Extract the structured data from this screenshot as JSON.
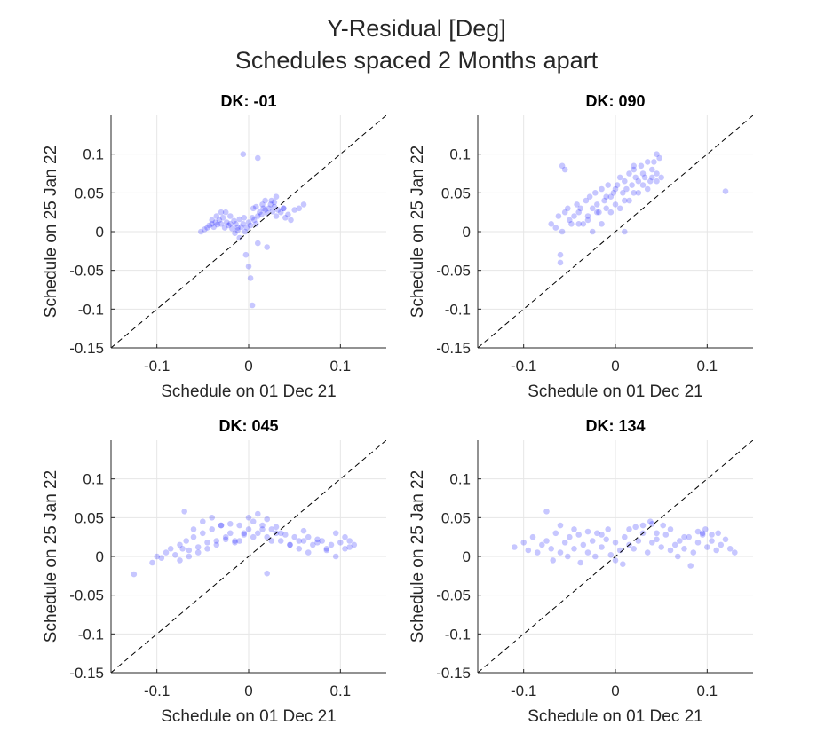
{
  "figure": {
    "title_line1": "Y-Residual [Deg]",
    "title_line2": "Schedules spaced 2 Months apart"
  },
  "style": {
    "point_color": "#0000ff",
    "point_opacity": 0.22,
    "axis_color": "#262626",
    "grid_color": "#e6e6e6"
  },
  "chart_data": [
    {
      "type": "scatter",
      "title": "DK: -01",
      "xlabel": "Schedule on 01 Dec 21",
      "ylabel": "Schedule on 25 Jan 22",
      "xlim": [
        -0.15,
        0.15
      ],
      "ylim": [
        -0.15,
        0.15
      ],
      "xticks": [
        -0.1,
        0,
        0.1
      ],
      "xtick_labels": [
        "-0.1",
        "0",
        "0.1"
      ],
      "yticks": [
        -0.15,
        -0.1,
        -0.05,
        0,
        0.05,
        0.1
      ],
      "ytick_labels": [
        "-0.15",
        "-0.1",
        "-0.05",
        "0",
        "0.05",
        "0.1"
      ],
      "grid": true,
      "reference_line": "y = x (dashed)",
      "series": [
        {
          "x": [
            -0.052,
            -0.048,
            -0.045,
            -0.043,
            -0.04,
            -0.038,
            -0.036,
            -0.034,
            -0.032,
            -0.03,
            -0.028,
            -0.026,
            -0.024,
            -0.022,
            -0.02,
            -0.018,
            -0.016,
            -0.014,
            -0.012,
            -0.01,
            -0.008,
            -0.006,
            -0.004,
            -0.002,
            0.0,
            0.002,
            0.004,
            0.006,
            0.008,
            0.01,
            0.012,
            0.014,
            0.016,
            0.018,
            0.02,
            0.022,
            0.024,
            0.026,
            0.028,
            0.03,
            0.032,
            0.035,
            0.038,
            0.04,
            0.043,
            0.046,
            0.05,
            0.055,
            0.06,
            -0.035,
            -0.025,
            -0.015,
            -0.005,
            0.005,
            0.015,
            0.025,
            0.01,
            -0.01,
            0.02,
            -0.02,
            0.0,
            0.002,
            -0.003,
            0.004,
            -0.006,
            0.01,
            0.03,
            -0.04,
            -0.03,
            -0.012,
            0.008,
            0.018,
            0.028,
            0.038
          ],
          "y": [
            0.0,
            0.003,
            0.005,
            0.008,
            0.01,
            0.006,
            0.012,
            0.009,
            0.015,
            0.01,
            0.018,
            0.005,
            0.012,
            0.008,
            0.02,
            0.004,
            0.014,
            0.01,
            0.002,
            0.016,
            0.006,
            0.01,
            0.0,
            0.005,
            0.012,
            0.008,
            0.018,
            0.015,
            0.01,
            0.02,
            0.025,
            0.022,
            0.03,
            0.028,
            0.024,
            0.03,
            0.035,
            0.026,
            0.032,
            0.02,
            0.028,
            0.025,
            0.03,
            0.018,
            0.022,
            0.015,
            0.028,
            0.03,
            0.035,
            0.02,
            0.025,
            -0.002,
            0.018,
            0.03,
            0.035,
            0.04,
            -0.015,
            -0.008,
            -0.02,
            0.01,
            -0.045,
            -0.06,
            -0.03,
            -0.095,
            0.1,
            0.095,
            0.045,
            0.015,
            0.025,
            0.005,
            0.032,
            0.04,
            0.038,
            0.03
          ]
        }
      ]
    },
    {
      "type": "scatter",
      "title": "DK: 090",
      "xlabel": "Schedule on 01 Dec 21",
      "ylabel": "Schedule on 25 Jan 22",
      "xlim": [
        -0.15,
        0.15
      ],
      "ylim": [
        -0.15,
        0.15
      ],
      "xticks": [
        -0.1,
        0,
        0.1
      ],
      "xtick_labels": [
        "-0.1",
        "0",
        "0.1"
      ],
      "yticks": [
        -0.15,
        -0.1,
        -0.05,
        0,
        0.05,
        0.1
      ],
      "ytick_labels": [
        "-0.15",
        "-0.1",
        "-0.05",
        "0",
        "0.05",
        "0.1"
      ],
      "grid": true,
      "reference_line": "y = x (dashed)",
      "series": [
        {
          "x": [
            -0.07,
            -0.065,
            -0.062,
            -0.06,
            -0.058,
            -0.055,
            -0.052,
            -0.05,
            -0.048,
            -0.045,
            -0.042,
            -0.04,
            -0.038,
            -0.035,
            -0.032,
            -0.03,
            -0.028,
            -0.025,
            -0.022,
            -0.02,
            -0.018,
            -0.015,
            -0.012,
            -0.01,
            -0.008,
            -0.005,
            -0.002,
            0.0,
            0.002,
            0.005,
            0.008,
            0.01,
            0.012,
            0.015,
            0.018,
            0.02,
            0.022,
            0.025,
            0.028,
            0.03,
            0.032,
            0.035,
            0.038,
            0.04,
            0.042,
            0.045,
            0.048,
            0.05,
            -0.03,
            -0.02,
            -0.01,
            0.0,
            0.01,
            0.02,
            0.03,
            0.04,
            -0.025,
            -0.015,
            -0.005,
            0.005,
            0.015,
            0.025,
            0.035,
            0.045,
            -0.06,
            -0.058,
            -0.055,
            0.01,
            0.12,
            0.045,
            -0.04,
            0.02
          ],
          "y": [
            0.01,
            0.005,
            0.02,
            -0.04,
            0.0,
            0.025,
            0.03,
            0.015,
            0.01,
            0.02,
            0.035,
            0.025,
            0.03,
            0.01,
            0.04,
            0.02,
            0.045,
            0.03,
            0.05,
            0.035,
            0.025,
            0.055,
            0.04,
            0.03,
            0.06,
            0.045,
            0.05,
            0.035,
            0.06,
            0.07,
            0.05,
            0.065,
            0.055,
            0.075,
            0.06,
            0.08,
            0.07,
            0.065,
            0.085,
            0.075,
            0.07,
            0.09,
            0.065,
            0.08,
            0.09,
            0.075,
            0.095,
            0.07,
            0.015,
            0.025,
            0.045,
            0.055,
            0.04,
            0.05,
            0.06,
            0.07,
            0.0,
            0.01,
            0.025,
            0.03,
            0.04,
            0.05,
            0.055,
            0.065,
            -0.03,
            0.085,
            0.08,
            0.0,
            0.052,
            0.1,
            0.01,
            0.085
          ]
        }
      ]
    },
    {
      "type": "scatter",
      "title": "DK: 045",
      "xlabel": "Schedule on 01 Dec 21",
      "ylabel": "Schedule on 25 Jan 22",
      "xlim": [
        -0.15,
        0.15
      ],
      "ylim": [
        -0.15,
        0.15
      ],
      "xticks": [
        -0.1,
        0,
        0.1
      ],
      "xtick_labels": [
        "-0.1",
        "0",
        "0.1"
      ],
      "yticks": [
        -0.15,
        -0.1,
        -0.05,
        0,
        0.05,
        0.1
      ],
      "ytick_labels": [
        "-0.15",
        "-0.1",
        "-0.05",
        "0",
        "0.05",
        "0.1"
      ],
      "grid": true,
      "reference_line": "y = x (dashed)",
      "series": [
        {
          "x": [
            -0.125,
            -0.105,
            -0.1,
            -0.095,
            -0.09,
            -0.085,
            -0.08,
            -0.075,
            -0.072,
            -0.068,
            -0.065,
            -0.06,
            -0.055,
            -0.05,
            -0.045,
            -0.04,
            -0.035,
            -0.03,
            -0.025,
            -0.02,
            -0.015,
            -0.01,
            -0.005,
            0.0,
            0.005,
            0.01,
            0.015,
            0.02,
            0.025,
            0.03,
            0.035,
            0.04,
            0.045,
            0.05,
            0.055,
            0.06,
            0.065,
            0.07,
            0.075,
            0.08,
            0.085,
            0.09,
            0.095,
            0.1,
            0.105,
            0.11,
            0.115,
            -0.07,
            -0.06,
            -0.05,
            -0.04,
            -0.03,
            -0.02,
            -0.01,
            0.0,
            0.01,
            0.02,
            0.03,
            -0.075,
            -0.065,
            -0.055,
            -0.045,
            -0.035,
            -0.025,
            -0.015,
            -0.005,
            0.005,
            0.015,
            0.025,
            0.035,
            0.045,
            0.055,
            0.065,
            0.075,
            0.085,
            0.095,
            0.105,
            0.11,
            0.02,
            0.06
          ],
          "y": [
            -0.023,
            -0.008,
            0.0,
            -0.002,
            0.005,
            0.01,
            0.002,
            0.015,
            0.01,
            0.02,
            0.008,
            0.025,
            0.012,
            0.03,
            0.018,
            0.035,
            0.02,
            0.04,
            0.025,
            0.03,
            0.02,
            0.04,
            0.028,
            0.035,
            0.045,
            0.03,
            0.04,
            0.025,
            0.035,
            0.03,
            0.02,
            0.028,
            0.015,
            0.025,
            0.01,
            0.02,
            0.025,
            0.015,
            0.018,
            0.02,
            0.008,
            0.015,
            0.03,
            0.018,
            0.01,
            0.02,
            0.015,
            0.058,
            0.035,
            0.045,
            0.05,
            0.04,
            0.042,
            0.02,
            0.05,
            0.055,
            0.048,
            0.038,
            -0.005,
            0.0,
            0.005,
            0.01,
            0.015,
            0.022,
            0.018,
            0.03,
            0.025,
            0.035,
            0.02,
            0.03,
            0.015,
            0.02,
            0.005,
            0.022,
            0.01,
            0.0,
            0.025,
            0.012,
            -0.022,
            0.033
          ]
        }
      ]
    },
    {
      "type": "scatter",
      "title": "DK: 134",
      "xlabel": "Schedule on 01 Dec 21",
      "ylabel": "Schedule on 25 Jan 22",
      "xlim": [
        -0.15,
        0.15
      ],
      "ylim": [
        -0.15,
        0.15
      ],
      "xticks": [
        -0.1,
        0,
        0.1
      ],
      "xtick_labels": [
        "-0.1",
        "0",
        "0.1"
      ],
      "yticks": [
        -0.15,
        -0.1,
        -0.05,
        0,
        0.05,
        0.1
      ],
      "ytick_labels": [
        "-0.15",
        "-0.1",
        "-0.05",
        "0",
        "0.05",
        "0.1"
      ],
      "grid": true,
      "reference_line": "y = x (dashed)",
      "series": [
        {
          "x": [
            -0.11,
            -0.1,
            -0.095,
            -0.09,
            -0.085,
            -0.08,
            -0.075,
            -0.07,
            -0.065,
            -0.06,
            -0.055,
            -0.05,
            -0.045,
            -0.04,
            -0.035,
            -0.03,
            -0.025,
            -0.02,
            -0.015,
            -0.01,
            -0.005,
            0.0,
            0.005,
            0.01,
            0.015,
            0.02,
            0.025,
            0.03,
            0.035,
            0.04,
            0.045,
            0.05,
            0.055,
            0.06,
            0.065,
            0.07,
            0.075,
            0.08,
            0.085,
            0.09,
            0.095,
            0.1,
            0.105,
            0.11,
            0.115,
            0.12,
            0.125,
            0.13,
            -0.075,
            -0.06,
            -0.045,
            -0.03,
            -0.015,
            0.0,
            0.015,
            0.03,
            0.045,
            0.06,
            0.075,
            0.09,
            0.105,
            -0.068,
            -0.052,
            -0.038,
            -0.022,
            -0.008,
            0.008,
            0.022,
            0.038,
            0.052,
            0.068,
            0.082,
            0.098,
            0.112,
            0.04,
            0.095
          ],
          "y": [
            0.012,
            0.018,
            0.008,
            0.025,
            0.005,
            0.015,
            0.02,
            0.01,
            0.03,
            0.005,
            0.018,
            0.025,
            0.01,
            0.028,
            0.015,
            0.005,
            0.02,
            0.03,
            0.012,
            0.022,
            0.002,
            0.018,
            0.008,
            0.025,
            0.015,
            0.01,
            0.02,
            0.03,
            0.005,
            0.018,
            0.022,
            0.012,
            0.028,
            0.008,
            0.015,
            0.02,
            0.01,
            0.025,
            0.005,
            0.018,
            0.03,
            0.012,
            0.02,
            0.008,
            0.015,
            0.022,
            0.01,
            0.005,
            0.058,
            0.04,
            0.035,
            0.032,
            0.028,
            -0.005,
            0.035,
            0.04,
            0.03,
            0.035,
            0.025,
            0.032,
            0.028,
            -0.005,
            0.0,
            -0.008,
            0.0,
            0.035,
            -0.01,
            0.038,
            0.045,
            0.04,
            0.0,
            -0.012,
            0.035,
            0.03,
            0.042,
            0.028
          ]
        }
      ]
    }
  ]
}
